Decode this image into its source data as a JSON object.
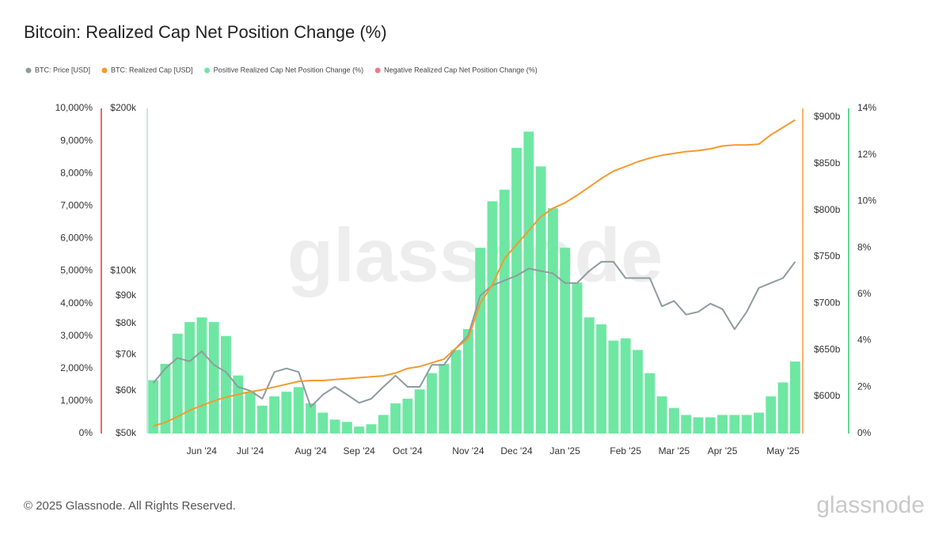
{
  "chart_data": {
    "type": "bar",
    "title": "Bitcoin: Realized Cap Net Position Change (%)",
    "watermark": "glassnode",
    "footer": "© 2025 Glassnode. All Rights Reserved.",
    "logo": "glassnode",
    "categories": [
      null,
      null,
      null,
      null,
      "Jun '24",
      null,
      null,
      null,
      "Jul '24",
      null,
      null,
      null,
      null,
      "Aug '24",
      null,
      null,
      null,
      "Sep '24",
      null,
      null,
      null,
      "Oct '24",
      null,
      null,
      null,
      null,
      "Nov '24",
      null,
      null,
      null,
      "Dec '24",
      null,
      null,
      null,
      "Jan '25",
      null,
      null,
      null,
      null,
      "Feb '25",
      null,
      null,
      null,
      "Mar '25",
      null,
      null,
      null,
      "Apr '25",
      null,
      null,
      null,
      null,
      "May '25",
      null
    ],
    "axes": {
      "y": {
        "color": "#e8646a",
        "ylim": [
          0,
          10000
        ],
        "yticks": [
          {
            "value": 0,
            "label": "0%"
          },
          {
            "value": 1000,
            "label": "1,000%"
          },
          {
            "value": 2000,
            "label": "2,000%"
          },
          {
            "value": 3000,
            "label": "3,000%"
          },
          {
            "value": 4000,
            "label": "4,000%"
          },
          {
            "value": 5000,
            "label": "5,000%"
          },
          {
            "value": 6000,
            "label": "6,000%"
          },
          {
            "value": 7000,
            "label": "7,000%"
          },
          {
            "value": 8000,
            "label": "8,000%"
          },
          {
            "value": 9000,
            "label": "9,000%"
          },
          {
            "value": 10000,
            "label": "10,000%"
          }
        ]
      },
      "y_price": {
        "color": "#c8e6e0",
        "log": true,
        "ylim": [
          50000,
          200000
        ],
        "yticks": [
          {
            "value": 50000,
            "label": "$50k"
          },
          {
            "value": 60000,
            "label": "$60k"
          },
          {
            "value": 70000,
            "label": "$70k"
          },
          {
            "value": 80000,
            "label": "$80k"
          },
          {
            "value": 90000,
            "label": "$90k"
          },
          {
            "value": 100000,
            "label": "$100k"
          },
          {
            "value": 200000,
            "label": "$200k"
          }
        ]
      },
      "y2": {
        "color": "#f9b46e",
        "ylim": [
          560,
          909.4
        ],
        "yticks": [
          {
            "value": 600,
            "label": "$600b"
          },
          {
            "value": 650,
            "label": "$650b"
          },
          {
            "value": 700,
            "label": "$700b"
          },
          {
            "value": 750,
            "label": "$750b"
          },
          {
            "value": 800,
            "label": "$800b"
          },
          {
            "value": 850,
            "label": "$850b"
          },
          {
            "value": 900,
            "label": "$900b"
          }
        ]
      },
      "y2_pct": {
        "color": "#5ed98f",
        "ylim": [
          0,
          14
        ],
        "yticks": [
          {
            "value": 0,
            "label": "0%"
          },
          {
            "value": 2,
            "label": "2%"
          },
          {
            "value": 4,
            "label": "4%"
          },
          {
            "value": 6,
            "label": "6%"
          },
          {
            "value": 8,
            "label": "8%"
          },
          {
            "value": 10,
            "label": "10%"
          },
          {
            "value": 12,
            "label": "12%"
          },
          {
            "value": 14,
            "label": "14%"
          }
        ]
      }
    },
    "series": [
      {
        "name": "BTC: Price [USD]",
        "type": "line",
        "axis": "y_price",
        "color": "#8e9c9e",
        "values": [
          62000,
          66000,
          69000,
          68000,
          71000,
          67000,
          65000,
          61000,
          60000,
          58000,
          65000,
          66000,
          65000,
          56000,
          59000,
          61000,
          59000,
          57000,
          58000,
          61000,
          64000,
          61000,
          61000,
          67000,
          67000,
          72000,
          76000,
          90000,
          94000,
          96000,
          98000,
          101000,
          100000,
          99000,
          95000,
          95000,
          100000,
          104000,
          104000,
          97000,
          97000,
          97000,
          86000,
          88000,
          83000,
          84000,
          87000,
          85000,
          78000,
          84000,
          93000,
          95000,
          97000,
          104000
        ]
      },
      {
        "name": "BTC: Realized Cap [USD]",
        "type": "line",
        "axis": "y2",
        "color": "#f39a2e",
        "values": [
          568,
          572,
          578,
          585,
          590,
          595,
          599,
          602,
          605,
          607,
          610,
          613,
          616,
          617,
          617,
          618,
          619,
          620,
          621,
          622,
          625,
          630,
          632,
          636,
          640,
          652,
          662,
          700,
          720,
          748,
          763,
          778,
          793,
          802,
          808,
          816,
          825,
          834,
          842,
          847,
          852,
          856,
          859,
          861,
          863,
          864,
          866,
          869,
          870,
          870,
          871,
          881,
          889,
          897
        ]
      },
      {
        "name": "Positive Realized Cap Net Position Change (%)",
        "type": "bar",
        "axis": "y2_pct",
        "color": "#6ee7a3",
        "values": [
          2.3,
          3.0,
          4.3,
          4.8,
          5.0,
          4.8,
          4.2,
          2.5,
          1.8,
          1.2,
          1.6,
          1.8,
          2.0,
          1.3,
          0.9,
          0.6,
          0.5,
          0.3,
          0.4,
          0.8,
          1.3,
          1.5,
          1.9,
          2.6,
          3.0,
          3.6,
          4.5,
          8.0,
          10.0,
          10.5,
          12.3,
          13.0,
          11.5,
          9.7,
          8.0,
          6.5,
          5.0,
          4.7,
          4.0,
          4.1,
          3.6,
          2.6,
          1.6,
          1.1,
          0.8,
          0.7,
          0.7,
          0.8,
          0.8,
          0.8,
          0.9,
          1.6,
          2.2,
          3.1
        ]
      },
      {
        "name": "Negative Realized Cap Net Position Change (%)",
        "type": "bar",
        "axis": "y",
        "color": "#f07a80",
        "values": [
          0,
          0,
          0,
          0,
          0,
          0,
          0,
          0,
          0,
          0,
          0,
          0,
          0,
          0,
          0,
          0,
          0,
          0,
          0,
          0,
          0,
          0,
          0,
          0,
          0,
          0,
          0,
          0,
          0,
          0,
          0,
          0,
          0,
          0,
          0,
          0,
          0,
          0,
          0,
          0,
          0,
          0,
          0,
          0,
          0,
          0,
          0,
          0,
          0,
          0,
          0,
          0,
          0,
          0
        ]
      }
    ],
    "legend": "top-left"
  }
}
